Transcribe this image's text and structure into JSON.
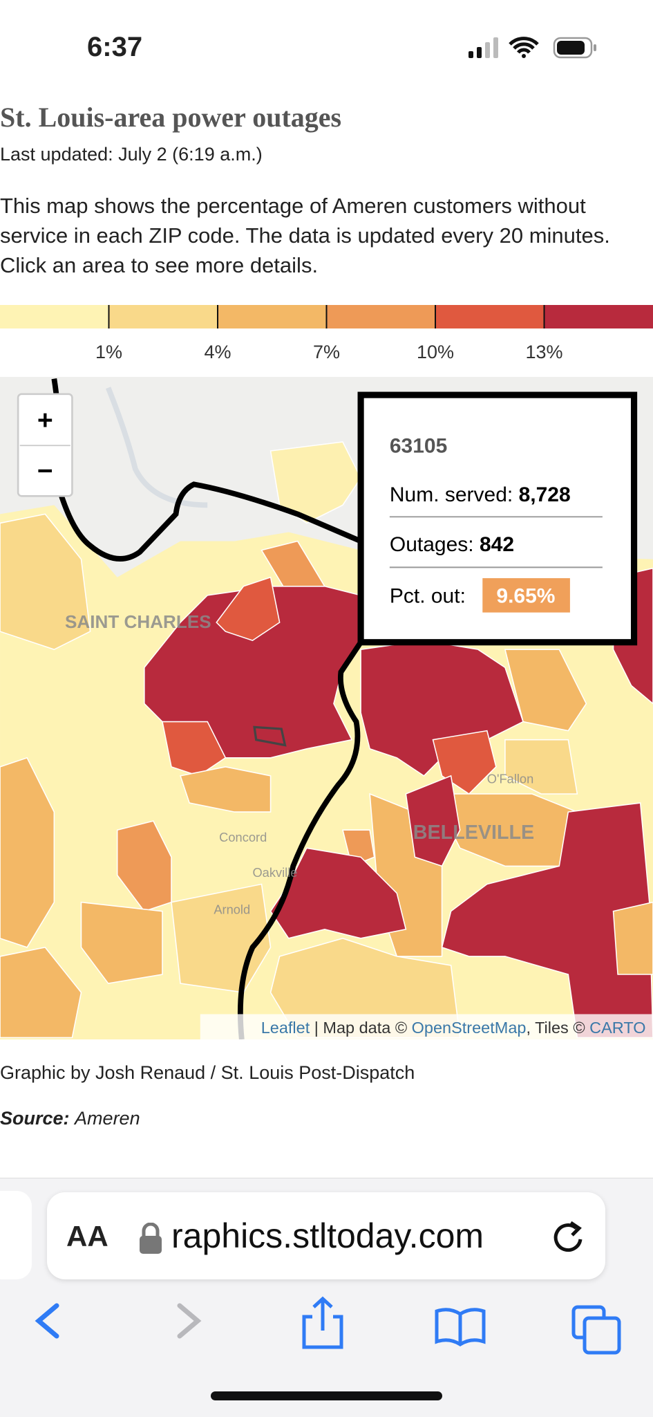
{
  "status_bar": {
    "time": "6:37"
  },
  "article": {
    "title": "St. Louis-area power outages",
    "updated": "Last updated: July 2 (6:19 a.m.)",
    "description": "This map shows the percentage of Ameren customers without service in each ZIP code. The data is updated every 20 minutes. Click an area to see more details."
  },
  "legend": {
    "colors": [
      "#fef3b4",
      "#f9d98a",
      "#f3b866",
      "#ee9a57",
      "#e0593f",
      "#b82a3d"
    ],
    "ticks": [
      "1%",
      "4%",
      "7%",
      "10%",
      "13%"
    ]
  },
  "map": {
    "zoom_in": "+",
    "zoom_out": "−",
    "labels": [
      "SAINT CHARLES",
      "BELLEVILLE",
      "O'Fallon",
      "Concord",
      "Oakville",
      "Arnold"
    ],
    "tooltip": {
      "zip": "63105",
      "served_label": "Num. served:",
      "served": "8,728",
      "outages_label": "Outages:",
      "outages": "842",
      "pct_label": "Pct. out:",
      "pct": "9.65%"
    },
    "attribution": [
      "Leaflet",
      " | Map data © ",
      "OpenStreetMap",
      ", Tiles © ",
      "CARTO"
    ]
  },
  "credits": {
    "byline": "Graphic by Josh Renaud / St. Louis Post-Dispatch",
    "source_label": "Source:",
    "source": "Ameren"
  },
  "browser": {
    "text_size": "AA",
    "url": "raphics.stltoday.com"
  }
}
